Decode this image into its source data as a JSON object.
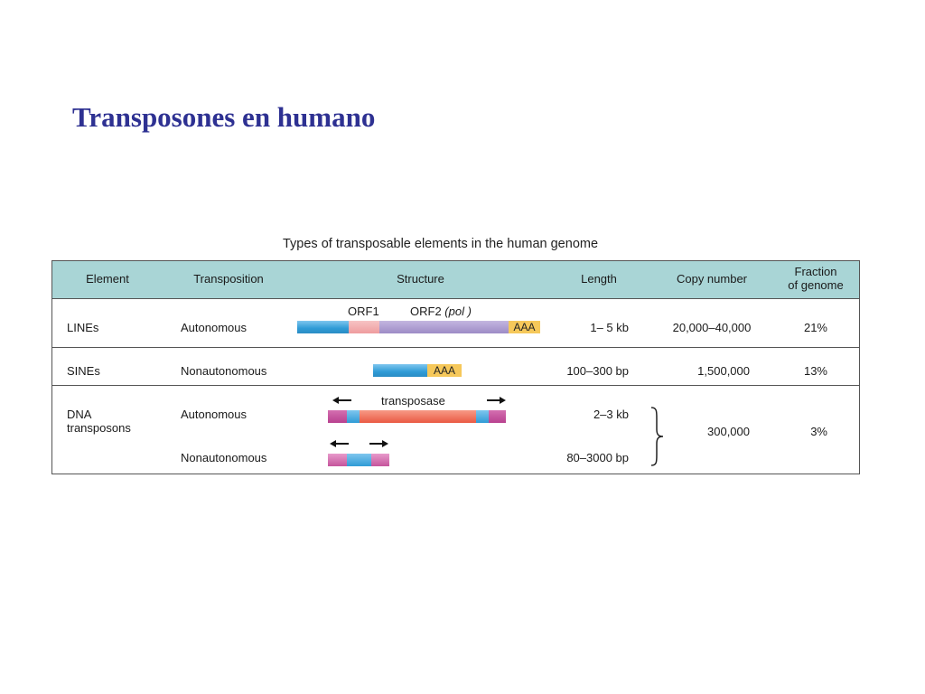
{
  "slide": {
    "title": "Transposones en humano"
  },
  "figure": {
    "caption": "Types of transposable elements in the human genome",
    "headers": {
      "element": "Element",
      "transposition": "Transposition",
      "structure": "Structure",
      "length": "Length",
      "copy_number": "Copy number",
      "fraction_line1": "Fraction",
      "fraction_line2": "of genome"
    },
    "rows": {
      "lines": {
        "element": "LINEs",
        "transposition": "Autonomous",
        "orf1_label": "ORF1",
        "orf2_label": "ORF2",
        "orf2_pol": "(pol )",
        "polya": "AAA",
        "length": "1– 5 kb",
        "copy_number": "20,000–40,000",
        "fraction": "21%"
      },
      "sines": {
        "element": "SINEs",
        "transposition": "Nonautonomous",
        "polya": "AAA",
        "length": "100–300 bp",
        "copy_number": "1,500,000",
        "fraction": "13%"
      },
      "dna": {
        "element_line1": "DNA",
        "element_line2": "transposons",
        "transposition_auto": "Autonomous",
        "transposition_nonauto": "Nonautonomous",
        "transposase_label": "transposase",
        "length_auto": "2–3 kb",
        "length_nonauto": "80–3000 bp",
        "copy_number": "300,000",
        "fraction": "3%"
      }
    },
    "colors": {
      "title": "#2e3192",
      "header_bg": "#a9d5d6",
      "blue_segment": "#3aa6dd",
      "pink_segment": "#f0a6a8",
      "purple_segment": "#a896cc",
      "polya": "#f6c85a",
      "magenta_tir": "#b8418f",
      "transposase": "#ef6a55"
    }
  }
}
